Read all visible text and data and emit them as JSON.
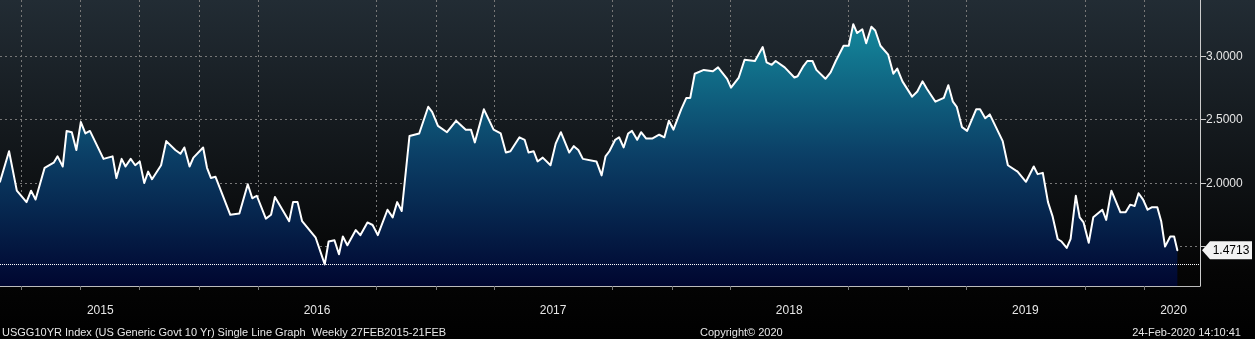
{
  "chart_data": {
    "type": "area",
    "grid": true,
    "marker": "none",
    "line_style": "solid",
    "xlim": [
      "2015-02-27",
      "2020-03-27"
    ],
    "ylim": [
      1.19,
      3.44
    ],
    "xticks": [
      {
        "value": "2015-04-01",
        "label": null
      },
      {
        "value": "2015-07-01",
        "label": null
      },
      {
        "value": "2015-08-01",
        "label": "2015"
      },
      {
        "value": "2015-10-01",
        "label": null
      },
      {
        "value": "2016-01-01",
        "label": null
      },
      {
        "value": "2016-04-01",
        "label": null
      },
      {
        "value": "2016-07-01",
        "label": "2016"
      },
      {
        "value": "2016-10-01",
        "label": null
      },
      {
        "value": "2017-01-01",
        "label": null
      },
      {
        "value": "2017-04-01",
        "label": null
      },
      {
        "value": "2017-07-01",
        "label": "2017"
      },
      {
        "value": "2017-10-01",
        "label": null
      },
      {
        "value": "2018-01-01",
        "label": null
      },
      {
        "value": "2018-04-01",
        "label": null
      },
      {
        "value": "2018-07-01",
        "label": "2018"
      },
      {
        "value": "2018-10-01",
        "label": null
      },
      {
        "value": "2019-01-01",
        "label": null
      },
      {
        "value": "2019-04-01",
        "label": null
      },
      {
        "value": "2019-07-01",
        "label": "2019"
      },
      {
        "value": "2019-10-01",
        "label": null
      },
      {
        "value": "2020-01-01",
        "label": null
      },
      {
        "value": "2020-02-15",
        "label": "2020"
      }
    ],
    "yticks": [
      {
        "value": 1.5,
        "label": null
      },
      {
        "value": 2.0,
        "label": "2.0000"
      },
      {
        "value": 2.5,
        "label": "2.5000"
      },
      {
        "value": 3.0,
        "label": "3.0000"
      }
    ],
    "ref_lines": [
      {
        "axis": "y",
        "value": 1.36,
        "line_style": "dotted",
        "color": "#ffffff"
      }
    ],
    "annotations": [
      {
        "text": "1.4713",
        "x": "2020-02-21",
        "y": 1.4713
      },
      "USGG10YR Index (US Generic Govt 10 Yr) Single Line Graph  Weekly 27FEB2015-21FEB",
      "Copyright© 2020",
      "24-Feb-2020 14:10:41"
    ],
    "series": [
      {
        "color": "#ffffff",
        "x": [
          "2015-02-27",
          "2015-03-13",
          "2015-03-25",
          "2015-04-09",
          "2015-04-16",
          "2015-04-23",
          "2015-05-07",
          "2015-05-21",
          "2015-05-27",
          "2015-06-04",
          "2015-06-10",
          "2015-06-18",
          "2015-06-25",
          "2015-07-02",
          "2015-07-09",
          "2015-07-16",
          "2015-08-06",
          "2015-08-20",
          "2015-08-26",
          "2015-09-03",
          "2015-09-09",
          "2015-09-17",
          "2015-09-24",
          "2015-10-01",
          "2015-10-08",
          "2015-10-14",
          "2015-10-20",
          "2015-11-03",
          "2015-11-11",
          "2015-11-25",
          "2015-12-03",
          "2015-12-09",
          "2015-12-17",
          "2015-12-23",
          "2016-01-07",
          "2016-01-13",
          "2016-01-19",
          "2016-01-26",
          "2016-02-18",
          "2016-03-03",
          "2016-03-16",
          "2016-03-23",
          "2016-03-30",
          "2016-04-13",
          "2016-04-21",
          "2016-04-27",
          "2016-05-19",
          "2016-05-25",
          "2016-06-01",
          "2016-06-08",
          "2016-06-29",
          "2016-07-13",
          "2016-07-19",
          "2016-07-28",
          "2016-08-04",
          "2016-08-10",
          "2016-08-17",
          "2016-08-30",
          "2016-09-06",
          "2016-09-17",
          "2016-09-25",
          "2016-10-03",
          "2016-10-18",
          "2016-10-26",
          "2016-11-02",
          "2016-11-09",
          "2016-11-21",
          "2016-12-06",
          "2016-12-20",
          "2016-12-26",
          "2017-01-04",
          "2017-01-18",
          "2017-02-01",
          "2017-02-16",
          "2017-02-24",
          "2017-03-02",
          "2017-03-16",
          "2017-03-31",
          "2017-04-11",
          "2017-04-19",
          "2017-04-26",
          "2017-05-10",
          "2017-05-18",
          "2017-05-24",
          "2017-06-01",
          "2017-06-07",
          "2017-06-15",
          "2017-06-27",
          "2017-07-05",
          "2017-07-13",
          "2017-07-26",
          "2017-08-02",
          "2017-08-09",
          "2017-08-16",
          "2017-09-06",
          "2017-09-14",
          "2017-09-20",
          "2017-09-26",
          "2017-10-05",
          "2017-10-11",
          "2017-10-18",
          "2017-10-25",
          "2017-10-31",
          "2017-11-08",
          "2017-11-14",
          "2017-11-22",
          "2017-12-01",
          "2017-12-12",
          "2017-12-20",
          "2017-12-27",
          "2018-01-03",
          "2018-01-15",
          "2018-01-23",
          "2018-01-29",
          "2018-02-05",
          "2018-02-19",
          "2018-03-05",
          "2018-03-13",
          "2018-03-27",
          "2018-04-02",
          "2018-04-14",
          "2018-04-23",
          "2018-05-09",
          "2018-05-21",
          "2018-05-27",
          "2018-06-04",
          "2018-06-10",
          "2018-06-24",
          "2018-07-09",
          "2018-07-14",
          "2018-07-23",
          "2018-07-29",
          "2018-08-06",
          "2018-08-12",
          "2018-08-26",
          "2018-09-03",
          "2018-09-11",
          "2018-09-23",
          "2018-10-01",
          "2018-10-08",
          "2018-10-14",
          "2018-10-22",
          "2018-10-28",
          "2018-11-05",
          "2018-11-11",
          "2018-11-19",
          "2018-12-01",
          "2018-12-09",
          "2018-12-15",
          "2018-12-23",
          "2019-01-07",
          "2019-01-15",
          "2019-01-23",
          "2019-01-30",
          "2019-02-12",
          "2019-02-25",
          "2019-03-04",
          "2019-03-11",
          "2019-03-17",
          "2019-03-25",
          "2019-04-02",
          "2019-04-16",
          "2019-04-22",
          "2019-04-30",
          "2019-05-07",
          "2019-05-27",
          "2019-06-04",
          "2019-06-19",
          "2019-07-02",
          "2019-07-14",
          "2019-07-20",
          "2019-07-28",
          "2019-08-05",
          "2019-08-12",
          "2019-08-20",
          "2019-08-26",
          "2019-09-03",
          "2019-09-09",
          "2019-09-17",
          "2019-09-23",
          "2019-09-29",
          "2019-10-07",
          "2019-10-14",
          "2019-10-28",
          "2019-11-03",
          "2019-11-11",
          "2019-11-25",
          "2019-12-03",
          "2019-12-10",
          "2019-12-17",
          "2019-12-23",
          "2019-12-30",
          "2020-01-06",
          "2020-01-13",
          "2020-01-21",
          "2020-01-27",
          "2020-02-02",
          "2020-02-10",
          "2020-02-16",
          "2020-02-21"
        ],
        "values": [
          2.01,
          2.25,
          1.94,
          1.85,
          1.94,
          1.87,
          2.12,
          2.16,
          2.21,
          2.13,
          2.41,
          2.4,
          2.26,
          2.48,
          2.39,
          2.41,
          2.19,
          2.21,
          2.04,
          2.19,
          2.13,
          2.19,
          2.14,
          2.17,
          2.0,
          2.09,
          2.03,
          2.14,
          2.33,
          2.26,
          2.23,
          2.28,
          2.13,
          2.2,
          2.28,
          2.12,
          2.04,
          2.05,
          1.75,
          1.76,
          1.99,
          1.88,
          1.9,
          1.72,
          1.75,
          1.89,
          1.7,
          1.85,
          1.85,
          1.7,
          1.57,
          1.36,
          1.54,
          1.55,
          1.44,
          1.58,
          1.51,
          1.63,
          1.59,
          1.69,
          1.67,
          1.59,
          1.79,
          1.73,
          1.85,
          1.78,
          2.37,
          2.39,
          2.6,
          2.56,
          2.45,
          2.4,
          2.49,
          2.42,
          2.42,
          2.32,
          2.58,
          2.42,
          2.39,
          2.24,
          2.25,
          2.36,
          2.34,
          2.24,
          2.25,
          2.17,
          2.2,
          2.14,
          2.31,
          2.4,
          2.24,
          2.29,
          2.26,
          2.19,
          2.17,
          2.06,
          2.21,
          2.25,
          2.34,
          2.36,
          2.28,
          2.39,
          2.41,
          2.34,
          2.4,
          2.35,
          2.35,
          2.38,
          2.36,
          2.49,
          2.42,
          2.58,
          2.67,
          2.67,
          2.86,
          2.89,
          2.88,
          2.91,
          2.82,
          2.75,
          2.83,
          2.97,
          2.96,
          3.07,
          2.95,
          2.93,
          2.96,
          2.91,
          2.83,
          2.84,
          2.92,
          2.96,
          2.96,
          2.89,
          2.82,
          2.87,
          2.96,
          3.08,
          3.08,
          3.25,
          3.18,
          3.21,
          3.1,
          3.23,
          3.2,
          3.08,
          3.01,
          2.86,
          2.9,
          2.8,
          2.68,
          2.72,
          2.8,
          2.74,
          2.64,
          2.67,
          2.77,
          2.64,
          2.6,
          2.44,
          2.41,
          2.58,
          2.58,
          2.51,
          2.54,
          2.33,
          2.14,
          2.09,
          2.01,
          2.13,
          2.07,
          2.08,
          1.85,
          1.74,
          1.56,
          1.54,
          1.49,
          1.56,
          1.9,
          1.73,
          1.69,
          1.53,
          1.73,
          1.79,
          1.71,
          1.94,
          1.77,
          1.77,
          1.83,
          1.82,
          1.92,
          1.87,
          1.79,
          1.81,
          1.81,
          1.7,
          1.5,
          1.58,
          1.58,
          1.4713
        ]
      }
    ]
  }
}
